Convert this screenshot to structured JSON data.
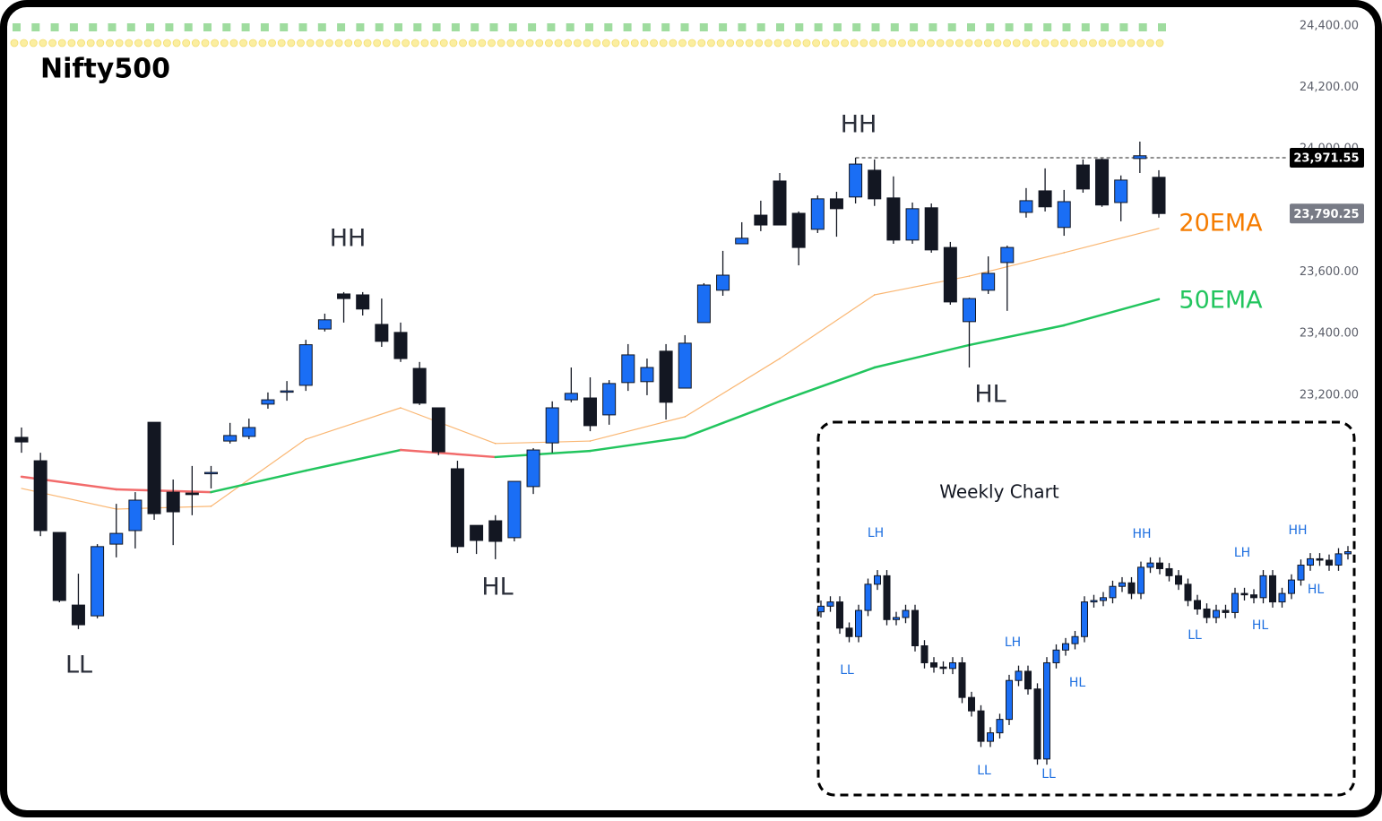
{
  "title": "Nifty500",
  "chart_data": [
    {
      "type": "candlestick",
      "up_color": "#1a6ef5",
      "down_color": "#131722",
      "open": [
        23063,
        22987,
        22754,
        22518,
        22483,
        22716,
        22760,
        23112,
        22885,
        22882,
        22946,
        23051,
        23066,
        23171,
        23211,
        23232,
        23415,
        23529,
        23526,
        23430,
        23404,
        23287,
        23159,
        22961,
        22777,
        22792,
        22737,
        22903,
        23045,
        23185,
        23191,
        23136,
        23241,
        23244,
        23343,
        23223,
        23436,
        23541,
        23692,
        23785,
        23896,
        23791,
        23739,
        23838,
        23844,
        23931,
        23841,
        23704,
        23809,
        23680,
        23439,
        23541,
        23631,
        23794,
        23864,
        23745,
        23948,
        23966,
        23826,
        23969,
        23908
      ],
      "high": [
        23095,
        23013,
        22754,
        22620,
        22716,
        22847,
        22885,
        23112,
        22926,
        22970,
        22970,
        23110,
        23124,
        23209,
        23246,
        23380,
        23465,
        23535,
        23535,
        23514,
        23436,
        23308,
        23159,
        22987,
        22777,
        22810,
        22920,
        23028,
        23180,
        23290,
        23258,
        23249,
        23366,
        23319,
        23366,
        23395,
        23564,
        23669,
        23762,
        23832,
        23922,
        23797,
        23849,
        23861,
        23971.55,
        23966,
        23911,
        23826,
        23823,
        23698,
        23517,
        23651,
        23686,
        23873,
        23937,
        23867,
        23966,
        23969,
        23914,
        24024,
        23931
      ],
      "low": [
        23013,
        22742,
        22527,
        22440,
        22475,
        22673,
        22702,
        22795,
        22713,
        22810,
        22897,
        23043,
        23057,
        23156,
        23182,
        23214,
        23407,
        23436,
        23459,
        23357,
        23308,
        23168,
        23005,
        22687,
        22684,
        22667,
        22725,
        22879,
        23013,
        23177,
        23083,
        23104,
        23214,
        23200,
        23121,
        23223,
        23436,
        23523,
        23692,
        23733,
        23753,
        23622,
        23727,
        23715,
        23823,
        23815,
        23692,
        23692,
        23663,
        23494,
        23290,
        23529,
        23474,
        23777,
        23797,
        23718,
        23858,
        23812,
        23765,
        23922,
        23777
      ],
      "close": [
        23048,
        22760,
        22533,
        22454,
        22708,
        22751,
        22859,
        22815,
        22821,
        22877,
        22949,
        23069,
        23095,
        23185,
        23214,
        23364,
        23445,
        23514,
        23480,
        23375,
        23319,
        23174,
        23016,
        22708,
        22728,
        22725,
        22920,
        23022,
        23159,
        23206,
        23101,
        23238,
        23331,
        23290,
        23177,
        23369,
        23558,
        23590,
        23710,
        23753,
        23753,
        23680,
        23838,
        23806,
        23951,
        23838,
        23704,
        23806,
        23672,
        23503,
        23514,
        23596,
        23680,
        23832,
        23812,
        23829,
        23870,
        23818,
        23899,
        23978,
        23790.25
      ],
      "series": [
        {
          "name": "20EMA",
          "color": "#f57c00",
          "x": [
            0,
            5,
            10,
            15,
            20,
            25,
            30,
            35,
            40,
            45,
            50,
            55,
            60
          ],
          "values": [
            22897,
            22830,
            22839,
            23057,
            23159,
            23043,
            23051,
            23130,
            23319,
            23526,
            23587,
            23663,
            23742
          ]
        },
        {
          "name": "50EMA",
          "color": "#22c55e",
          "falling_color": "#f26b6b",
          "x": [
            0,
            5,
            10,
            15,
            20,
            25,
            30,
            35,
            40,
            45,
            50,
            55,
            60
          ],
          "values": [
            22935,
            22894,
            22885,
            22955,
            23022,
            22999,
            23019,
            23063,
            23180,
            23290,
            23363,
            23427,
            23512
          ]
        }
      ],
      "ylim": [
        21863,
        24455
      ],
      "yticks": [
        {
          "value": 24400,
          "label": "24,400.00"
        },
        {
          "value": 24200,
          "label": "24,200.00"
        },
        {
          "value": 24000,
          "label": "24,000.00"
        },
        {
          "value": 23800,
          "label": "23,800.00"
        },
        {
          "value": 23600,
          "label": "23,600.00"
        },
        {
          "value": 23400,
          "label": "23,400.00"
        },
        {
          "value": 23200,
          "label": "23,200.00"
        }
      ],
      "price_lines": [
        {
          "value": 23971.55,
          "label": "23,971.55"
        },
        {
          "value": 23790.25,
          "label": "23,790.25"
        }
      ],
      "annotations": [
        "LL",
        "HH",
        "HL",
        "HH",
        "HL"
      ]
    },
    {
      "type": "candlestick",
      "title": "Weekly Chart",
      "up_color": "#1a6ef5",
      "down_color": "#131722",
      "open": [
        23500,
        23580,
        23640,
        23270,
        23150,
        23520,
        23890,
        24010,
        23390,
        23420,
        23520,
        23020,
        22780,
        22720,
        22700,
        22780,
        22290,
        22100,
        21670,
        21790,
        21980,
        22530,
        22660,
        22410,
        21420,
        22780,
        22960,
        23050,
        23150,
        23640,
        23660,
        23700,
        23860,
        23910,
        23760,
        24130,
        24190,
        24110,
        24010,
        23890,
        23660,
        23540,
        23420,
        23520,
        23490,
        23760,
        23740,
        23700,
        24010,
        23640,
        23760,
        23950,
        24160,
        24250,
        24230,
        24160,
        24320
      ],
      "high": [
        23660,
        23720,
        23720,
        23350,
        23600,
        23970,
        24090,
        24090,
        23500,
        23600,
        23600,
        23100,
        22860,
        22800,
        22860,
        22860,
        22370,
        22180,
        21870,
        22060,
        22610,
        22740,
        22740,
        22490,
        22860,
        23040,
        23130,
        23230,
        23720,
        23740,
        23780,
        23940,
        23990,
        23990,
        24210,
        24270,
        24270,
        24190,
        24090,
        23970,
        23740,
        23620,
        23600,
        23600,
        23840,
        23840,
        23820,
        24090,
        24090,
        23840,
        24030,
        24240,
        24330,
        24330,
        24310,
        24400,
        24430
      ],
      "low": [
        23420,
        23500,
        23190,
        23070,
        23070,
        23440,
        23810,
        23310,
        23310,
        23340,
        22940,
        22700,
        22640,
        22620,
        22620,
        22210,
        22020,
        21590,
        21590,
        21710,
        21900,
        22450,
        22330,
        21340,
        21340,
        22700,
        22880,
        22970,
        23070,
        23560,
        23580,
        23620,
        23780,
        23680,
        23680,
        24050,
        24030,
        23930,
        23810,
        23580,
        23460,
        23340,
        23340,
        23410,
        23410,
        23660,
        23620,
        23620,
        23560,
        23560,
        23680,
        23870,
        24080,
        24150,
        24080,
        24080,
        24240
      ],
      "close": [
        23580,
        23640,
        23270,
        23150,
        23520,
        23890,
        24010,
        23390,
        23420,
        23520,
        23020,
        22780,
        22720,
        22700,
        22780,
        22290,
        22100,
        21670,
        21790,
        21980,
        22530,
        22660,
        22410,
        21420,
        22780,
        22960,
        23050,
        23150,
        23640,
        23660,
        23700,
        23860,
        23910,
        23760,
        24130,
        24190,
        24110,
        24010,
        23890,
        23660,
        23540,
        23420,
        23520,
        23490,
        23760,
        23740,
        23700,
        24010,
        23640,
        23760,
        23950,
        24160,
        24250,
        24230,
        24160,
        24320,
        24350
      ],
      "ylim": [
        21000,
        24800
      ],
      "annotations": [
        "LH",
        "LL",
        "LH",
        "LL",
        "LL",
        "HL",
        "HH",
        "LH",
        "LL",
        "HL",
        "HH",
        "HL"
      ]
    }
  ]
}
